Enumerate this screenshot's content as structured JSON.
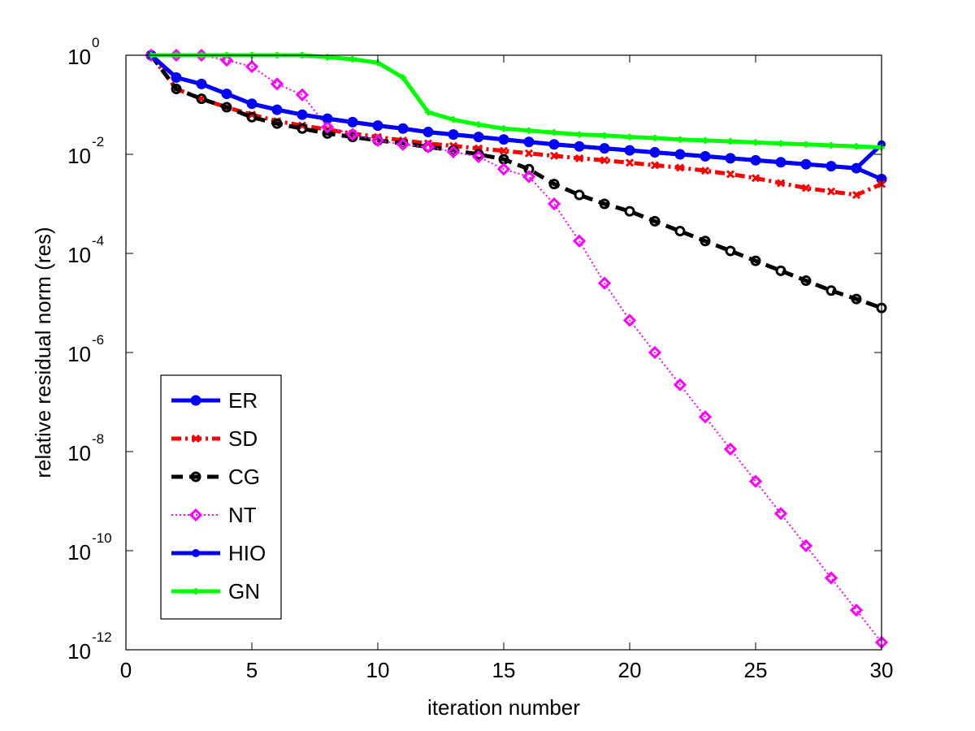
{
  "chart_data": {
    "type": "line",
    "title": "",
    "xlabel": "iteration number",
    "ylabel": "relative residual norm (res)",
    "x_scale": "linear",
    "y_scale": "log",
    "xlim": [
      0,
      30
    ],
    "ylim_exp": [
      -12,
      0
    ],
    "x_ticks": [
      0,
      5,
      10,
      15,
      20,
      25,
      30
    ],
    "y_tick_exponents": [
      0,
      -2,
      -4,
      -6,
      -8,
      -10,
      -12
    ],
    "y_tick_base": "10",
    "legend_position": "bottom-left",
    "x": [
      1,
      2,
      3,
      4,
      5,
      6,
      7,
      8,
      9,
      10,
      11,
      12,
      13,
      14,
      15,
      16,
      17,
      18,
      19,
      20,
      21,
      22,
      23,
      24,
      25,
      26,
      27,
      28,
      29,
      30
    ],
    "series": [
      {
        "name": "ER",
        "color": "#0000ff",
        "dash": "solid",
        "marker": "circle",
        "log10_values": [
          0,
          -0.45,
          -0.58,
          -0.78,
          -0.98,
          -1.1,
          -1.2,
          -1.28,
          -1.35,
          -1.42,
          -1.48,
          -1.55,
          -1.6,
          -1.65,
          -1.7,
          -1.75,
          -1.8,
          -1.84,
          -1.88,
          -1.92,
          -1.96,
          -2.0,
          -2.04,
          -2.08,
          -2.12,
          -2.16,
          -2.2,
          -2.24,
          -2.28,
          -2.5
        ]
      },
      {
        "name": "SD",
        "color": "#ff0000",
        "dash": "dashdot",
        "marker": "x",
        "log10_values": [
          0,
          -0.68,
          -0.88,
          -1.05,
          -1.2,
          -1.33,
          -1.42,
          -1.5,
          -1.58,
          -1.65,
          -1.72,
          -1.78,
          -1.83,
          -1.88,
          -1.93,
          -1.98,
          -2.03,
          -2.08,
          -2.12,
          -2.17,
          -2.22,
          -2.27,
          -2.33,
          -2.4,
          -2.48,
          -2.58,
          -2.68,
          -2.75,
          -2.82,
          -2.6
        ]
      },
      {
        "name": "CG",
        "color": "#000000",
        "dash": "dashed",
        "marker": "circle-open",
        "log10_values": [
          0,
          -0.68,
          -0.88,
          -1.05,
          -1.25,
          -1.38,
          -1.48,
          -1.58,
          -1.65,
          -1.72,
          -1.78,
          -1.85,
          -1.92,
          -2.0,
          -2.1,
          -2.3,
          -2.6,
          -2.82,
          -3.0,
          -3.15,
          -3.35,
          -3.55,
          -3.75,
          -3.95,
          -4.15,
          -4.35,
          -4.55,
          -4.75,
          -4.92,
          -5.1
        ]
      },
      {
        "name": "NT",
        "color": "#ff00ff",
        "dash": "dotted",
        "marker": "diamond",
        "log10_values": [
          0,
          0,
          0,
          -0.1,
          -0.23,
          -0.58,
          -0.8,
          -1.45,
          -1.6,
          -1.72,
          -1.8,
          -1.85,
          -1.95,
          -2.05,
          -2.3,
          -2.45,
          -3.0,
          -3.75,
          -4.6,
          -5.35,
          -6.0,
          -6.65,
          -7.3,
          -7.95,
          -8.6,
          -9.25,
          -9.9,
          -10.55,
          -11.2,
          -11.85
        ]
      },
      {
        "name": "HIO",
        "color": "#0000ff",
        "dash": "solid",
        "marker": "dot",
        "log10_values": [
          0,
          -0.45,
          -0.58,
          -0.78,
          -0.98,
          -1.1,
          -1.2,
          -1.28,
          -1.35,
          -1.42,
          -1.48,
          -1.55,
          -1.6,
          -1.65,
          -1.7,
          -1.75,
          -1.8,
          -1.84,
          -1.88,
          -1.92,
          -1.96,
          -2.0,
          -2.04,
          -2.08,
          -2.12,
          -2.16,
          -2.2,
          -2.24,
          -2.28,
          -1.8
        ]
      },
      {
        "name": "GN",
        "color": "#00ff00",
        "dash": "solid",
        "marker": "plus",
        "log10_values": [
          0,
          0,
          0,
          0,
          0,
          0,
          0,
          -0.04,
          -0.08,
          -0.15,
          -0.45,
          -1.15,
          -1.3,
          -1.4,
          -1.48,
          -1.52,
          -1.56,
          -1.6,
          -1.62,
          -1.65,
          -1.67,
          -1.7,
          -1.72,
          -1.74,
          -1.76,
          -1.78,
          -1.8,
          -1.82,
          -1.84,
          -1.86
        ]
      }
    ]
  }
}
